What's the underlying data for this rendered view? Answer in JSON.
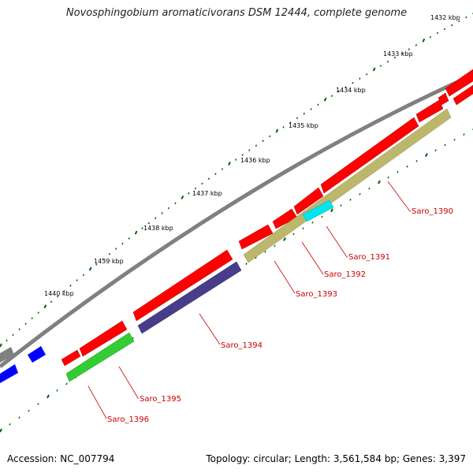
{
  "title": "Novosphingobium aromaticivorans DSM 12444, complete genome",
  "footer": {
    "accession": "Accession: NC_007794",
    "stats": "Topology: circular; Length: 3,561,584 bp; Genes: 3,397"
  },
  "colors": {
    "backbone": "#808080",
    "cds_forward": "#ff0000",
    "cds_reverse_partial": "#0000ff",
    "gene_1390": "#bdb76b",
    "gene_1391": "#00e5ee",
    "gene_1392_1393": "#bdb76b",
    "gene_1394": "#483d8b",
    "gene_1395_1396": "#32cd32",
    "label_text": "#cc0000",
    "ruler": "#006400"
  },
  "ruler_labels": [
    "1432 kbp",
    "1433 kbp",
    "1434 kbp",
    "1435 kbp",
    "1436 kbp",
    "1437 kbp",
    "1438 kbp",
    "1439 kbp",
    "1440 kbp"
  ],
  "gene_labels": [
    "Saro_1390",
    "Saro_1391",
    "Saro_1392",
    "Saro_1393",
    "Saro_1394",
    "Saro_1395",
    "Saro_1396"
  ]
}
